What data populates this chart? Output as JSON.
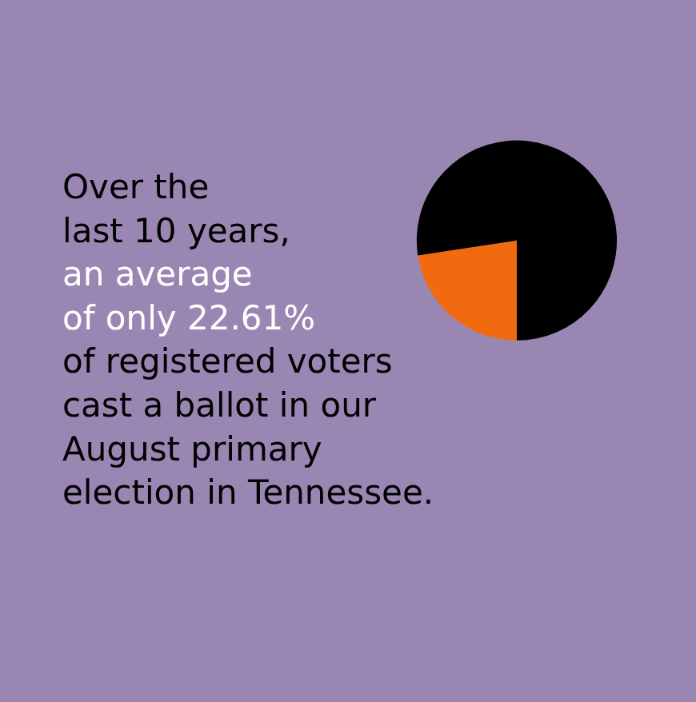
{
  "chart_data": {
    "type": "pie",
    "categories": [
      null,
      null
    ],
    "values": [
      22.61,
      77.39
    ],
    "colors": [
      "#f26a10",
      "#000000"
    ],
    "legend": false,
    "annotations": [
      "Over the\nlast 10 years,\nan average\nof only 22.61%\nof registered voters\ncast a ballot in our\nAugust primary\nelection in Tennessee."
    ]
  }
}
